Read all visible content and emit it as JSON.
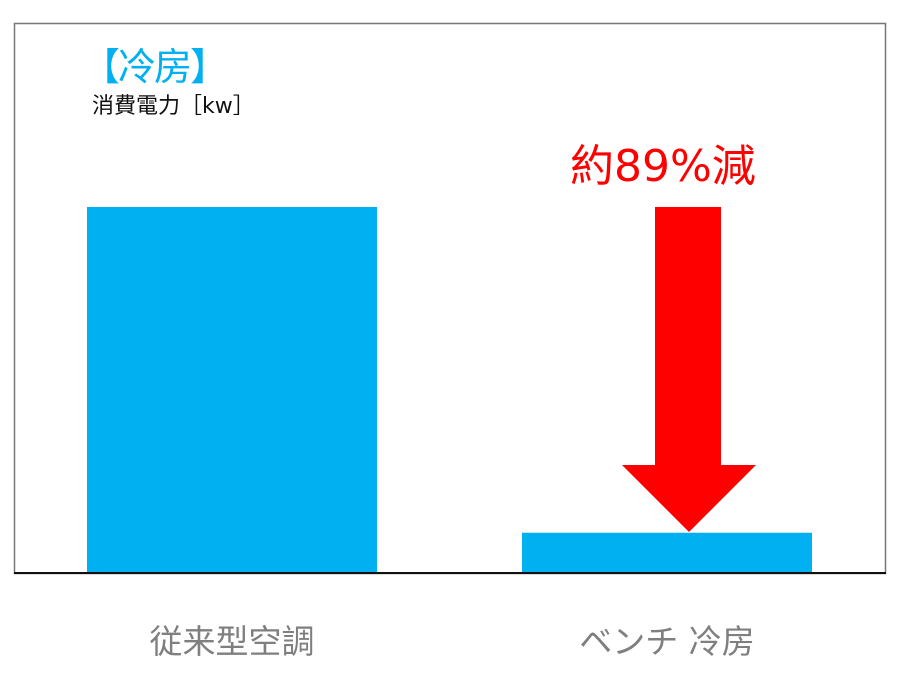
{
  "chart_data": {
    "type": "bar",
    "title": "【冷房】",
    "ylabel": "消費電力［kw］",
    "xlabel": "",
    "categories": [
      "従来型空調",
      "ベンチ 冷房"
    ],
    "values": [
      100,
      11
    ],
    "ylim": [
      0,
      100
    ],
    "grid": false,
    "annotation": "約89%減",
    "colors": {
      "bar": "#00b0f0",
      "arrow": "#ff0000",
      "annotation": "#ff0000",
      "category_label": "#7f7f7f"
    }
  }
}
